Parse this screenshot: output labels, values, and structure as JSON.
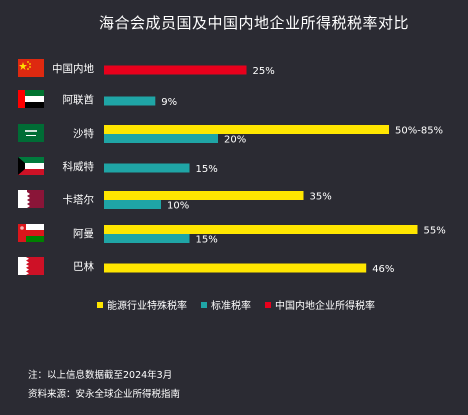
{
  "chart_data": {
    "type": "bar",
    "title": "海合会成员国及中国内地企业所得税税率对比",
    "orientation": "horizontal",
    "categories": [
      "中国内地",
      "阿联酋",
      "沙特",
      "科威特",
      "卡塔尔",
      "阿曼",
      "巴林"
    ],
    "series": [
      {
        "name": "能源行业特殊税率",
        "color": "#ffe600",
        "values": [
          null,
          null,
          50,
          null,
          35,
          55,
          46
        ],
        "labels": [
          null,
          null,
          "50%-85%",
          null,
          "35%",
          "55%",
          "46%"
        ]
      },
      {
        "name": "标准税率",
        "color": "#1fa5a6",
        "values": [
          null,
          9,
          20,
          15,
          10,
          15,
          null
        ],
        "labels": [
          null,
          "9%",
          "20%",
          "15%",
          "10%",
          "15%",
          null
        ]
      },
      {
        "name": "中国内地企业所得税率",
        "color": "#e8001c",
        "values": [
          25,
          null,
          null,
          null,
          null,
          null,
          null
        ],
        "labels": [
          "25%",
          null,
          null,
          null,
          null,
          null,
          null
        ]
      }
    ],
    "xlim": [
      0,
      55
    ],
    "grid": false,
    "legend": "bottom"
  },
  "flags": [
    "china-flag-icon",
    "uae-flag-icon",
    "saudi-flag-icon",
    "kuwait-flag-icon",
    "qatar-flag-icon",
    "oman-flag-icon",
    "bahrain-flag-icon"
  ],
  "notes": {
    "note": "注：以上信息数据截至2024年3月",
    "source": "资料来源：安永全球企业所得税指南"
  }
}
